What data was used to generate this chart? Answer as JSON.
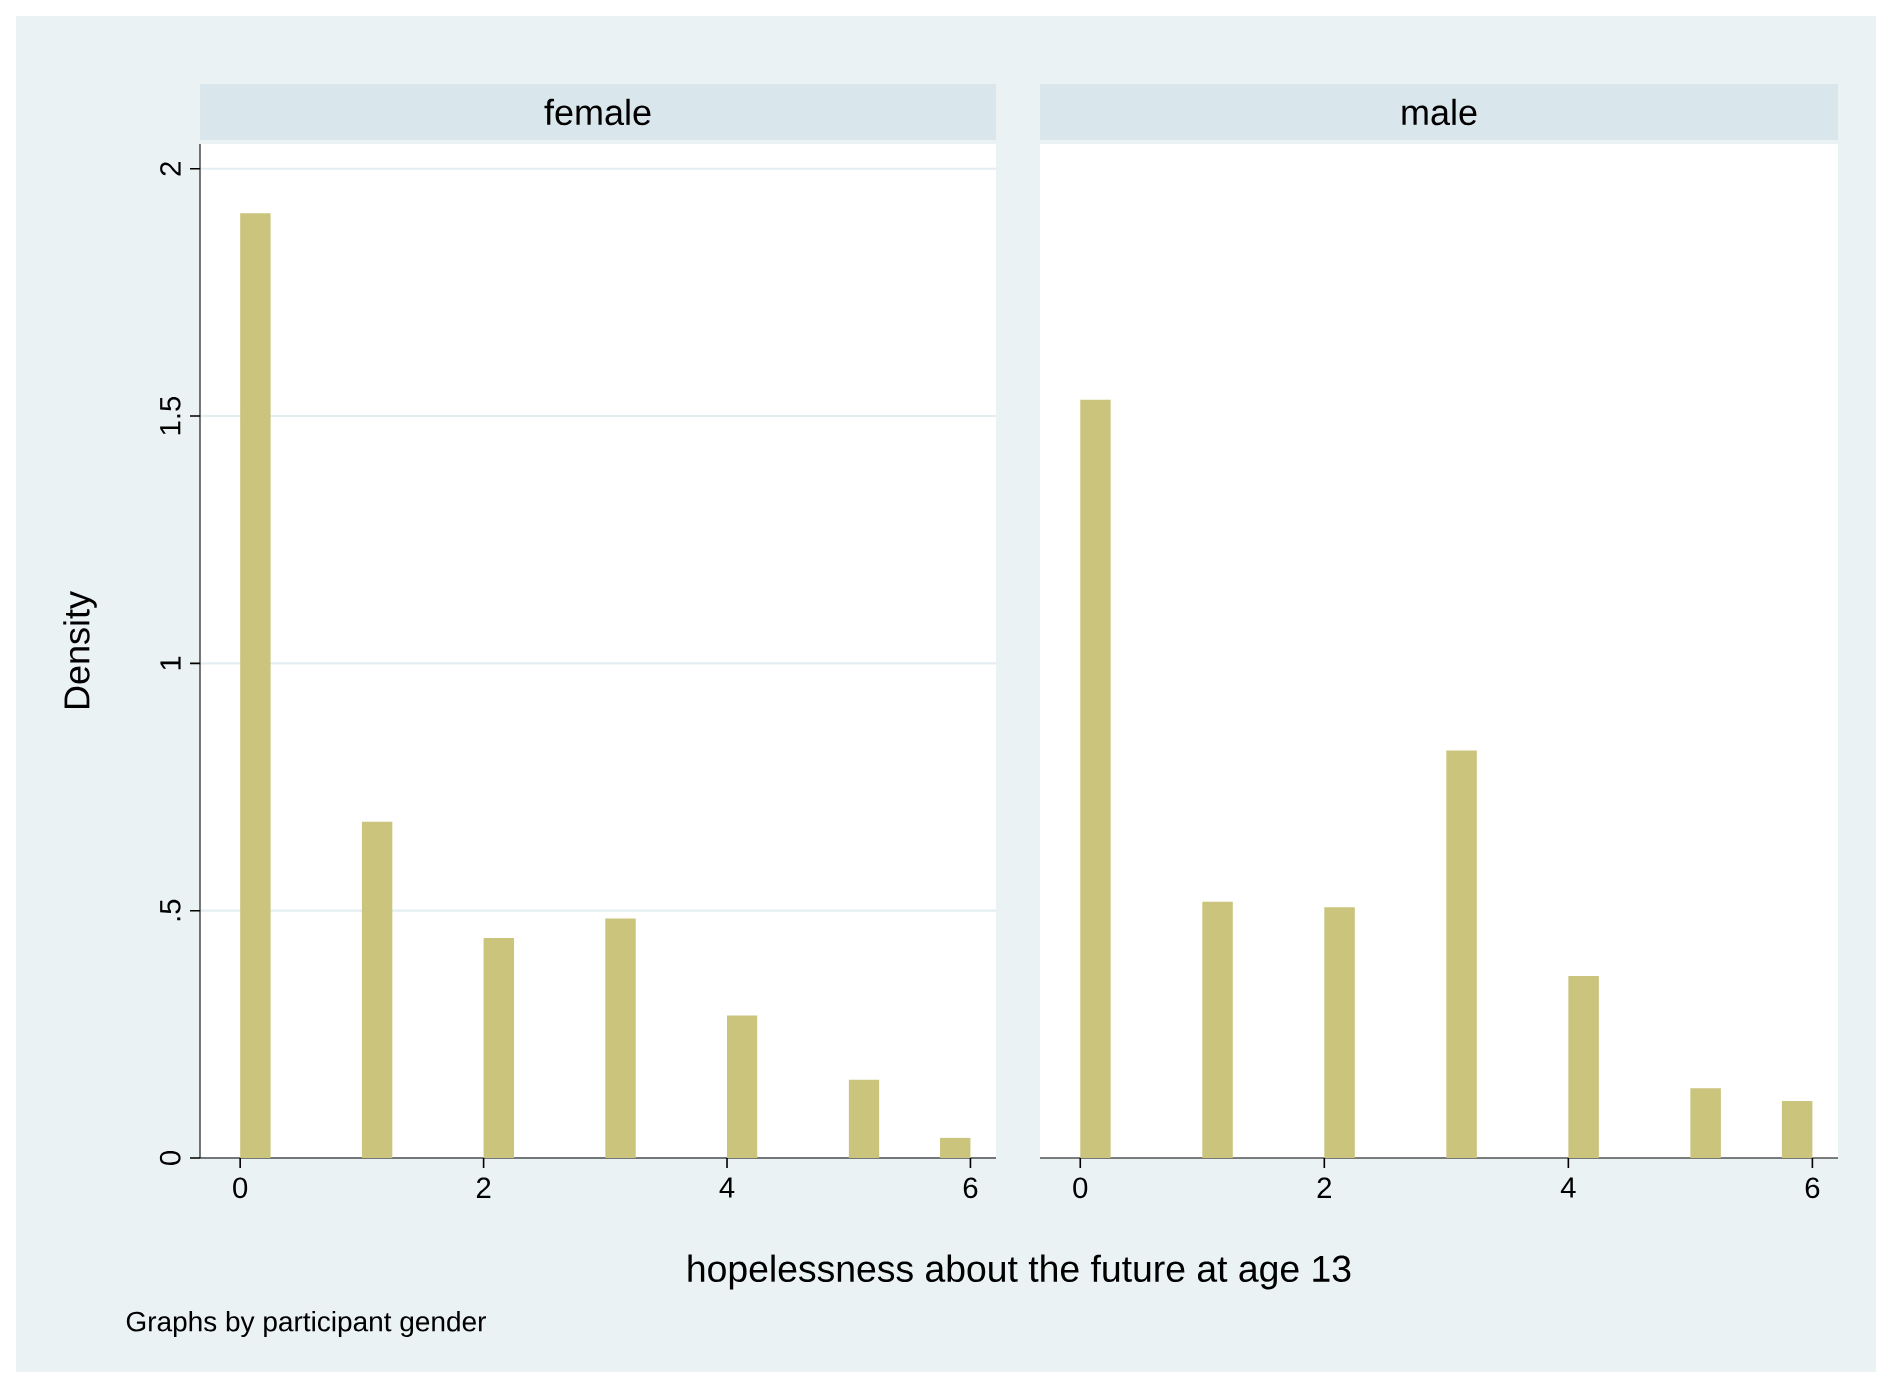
{
  "chart_data": [
    {
      "type": "histogram",
      "title": "female",
      "ylabel": "Density",
      "xlabel": "hopelessness about the future at age 13",
      "annotations": [
        "Graphs by participant gender"
      ],
      "bins": [
        0,
        0.25,
        0.5,
        0.75,
        1,
        1.25,
        1.5,
        1.75,
        2,
        2.25,
        2.5,
        2.75,
        3,
        3.25,
        3.5,
        3.75,
        4,
        4.25,
        4.5,
        4.75,
        5,
        5.25,
        5.5,
        5.75,
        6
      ],
      "values": [
        1.91,
        0,
        0,
        0,
        0.68,
        0,
        0,
        0,
        0.445,
        0,
        0,
        0,
        0.484,
        0,
        0,
        0,
        0.288,
        0,
        0,
        0,
        0.158,
        0,
        0,
        0.041
      ],
      "color": "#cbc47d",
      "xlim": [
        -0.33,
        6.21
      ],
      "ylim": [
        0,
        2.05
      ],
      "xticks": [
        0,
        2,
        4,
        6
      ],
      "yticks": [
        0,
        {
          "value": 0.5,
          "label": ".5"
        },
        1,
        1.5,
        2
      ],
      "grid": "y"
    },
    {
      "type": "histogram",
      "title": "male",
      "bins": [
        0,
        0.25,
        0.5,
        0.75,
        1,
        1.25,
        1.5,
        1.75,
        2,
        2.25,
        2.5,
        2.75,
        3,
        3.25,
        3.5,
        3.75,
        4,
        4.25,
        4.5,
        4.75,
        5,
        5.25,
        5.5,
        5.75,
        6
      ],
      "values": [
        1.533,
        0,
        0,
        0,
        0.518,
        0,
        0,
        0,
        0.507,
        0,
        0,
        0,
        0.824,
        0,
        0,
        0,
        0.368,
        0,
        0,
        0,
        0.141,
        0,
        0,
        0.115
      ],
      "color": "#cbc47d",
      "xlim": [
        -0.33,
        6.21
      ],
      "ylim": [
        0,
        2.05
      ],
      "xticks": [
        0,
        2,
        4,
        6
      ],
      "yticks": [
        0,
        0.5,
        1,
        1.5,
        2
      ],
      "grid": "y",
      "tick_labels": "x"
    }
  ]
}
